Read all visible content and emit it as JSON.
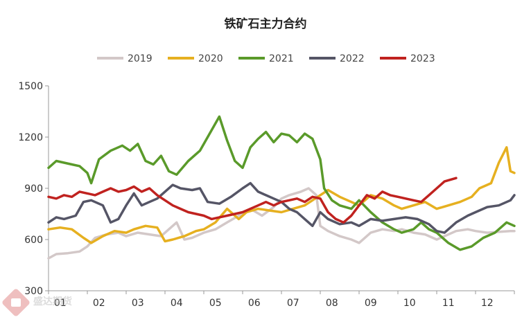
{
  "chart_data": {
    "type": "line",
    "title": "铁矿石主力合约",
    "xlabel": "",
    "ylabel": "",
    "ylim": [
      300,
      1500
    ],
    "yticks": [
      "1500",
      "1200",
      "900",
      "600",
      "300"
    ],
    "xticks": [
      "01",
      "02",
      "03",
      "04",
      "05",
      "06",
      "07",
      "08",
      "09",
      "10",
      "11",
      "12"
    ],
    "xlim": [
      1,
      13
    ],
    "grid": false,
    "legend_position": "top",
    "series": [
      {
        "name": "2019",
        "color": "#d3c8c8",
        "x": [
          1.0,
          1.2,
          1.5,
          1.8,
          2.0,
          2.2,
          2.5,
          2.8,
          3.0,
          3.3,
          3.6,
          3.9,
          4.1,
          4.3,
          4.5,
          4.7,
          5.0,
          5.3,
          5.6,
          5.9,
          6.2,
          6.5,
          6.8,
          7.0,
          7.2,
          7.5,
          7.7,
          7.9,
          8.0,
          8.2,
          8.5,
          8.8,
          9.0,
          9.3,
          9.6,
          9.9,
          10.1,
          10.4,
          10.7,
          11.0,
          11.2,
          11.5,
          11.8,
          12.0,
          12.3,
          12.6,
          12.9,
          13.0
        ],
        "values": [
          490,
          515,
          520,
          530,
          560,
          610,
          630,
          640,
          620,
          640,
          630,
          620,
          660,
          700,
          600,
          610,
          640,
          660,
          700,
          740,
          780,
          740,
          790,
          840,
          860,
          880,
          900,
          860,
          680,
          650,
          620,
          600,
          580,
          640,
          660,
          650,
          660,
          640,
          630,
          600,
          620,
          650,
          660,
          650,
          640,
          645,
          650,
          650
        ]
      },
      {
        "name": "2020",
        "color": "#e6b020",
        "x": [
          1.0,
          1.3,
          1.6,
          1.9,
          2.1,
          2.4,
          2.7,
          3.0,
          3.2,
          3.5,
          3.8,
          4.0,
          4.2,
          4.5,
          4.8,
          5.0,
          5.3,
          5.6,
          5.9,
          6.1,
          6.4,
          6.7,
          7.0,
          7.3,
          7.6,
          7.8,
          8.0,
          8.2,
          8.5,
          8.8,
          9.0,
          9.3,
          9.6,
          9.9,
          10.1,
          10.4,
          10.7,
          11.0,
          11.3,
          11.6,
          11.9,
          12.1,
          12.4,
          12.6,
          12.8,
          12.9,
          13.0
        ],
        "values": [
          660,
          670,
          660,
          610,
          580,
          620,
          650,
          640,
          660,
          680,
          670,
          590,
          600,
          620,
          650,
          660,
          700,
          780,
          720,
          760,
          780,
          770,
          760,
          780,
          800,
          830,
          860,
          890,
          850,
          820,
          800,
          860,
          840,
          800,
          780,
          800,
          820,
          780,
          800,
          820,
          850,
          900,
          930,
          1050,
          1140,
          1000,
          990
        ]
      },
      {
        "name": "2021",
        "color": "#5a9a2a",
        "x": [
          1.0,
          1.2,
          1.4,
          1.6,
          1.8,
          2.0,
          2.1,
          2.3,
          2.6,
          2.9,
          3.1,
          3.3,
          3.5,
          3.7,
          3.9,
          4.1,
          4.3,
          4.6,
          4.9,
          5.1,
          5.3,
          5.4,
          5.6,
          5.8,
          6.0,
          6.2,
          6.4,
          6.6,
          6.8,
          7.0,
          7.2,
          7.4,
          7.6,
          7.8,
          8.0,
          8.1,
          8.3,
          8.5,
          8.8,
          9.0,
          9.3,
          9.6,
          9.9,
          10.1,
          10.4,
          10.6,
          10.8,
          11.0,
          11.3,
          11.6,
          11.9,
          12.2,
          12.5,
          12.8,
          13.0
        ],
        "values": [
          1020,
          1060,
          1050,
          1040,
          1030,
          990,
          930,
          1070,
          1120,
          1150,
          1120,
          1160,
          1060,
          1040,
          1090,
          1000,
          980,
          1060,
          1120,
          1200,
          1280,
          1320,
          1180,
          1060,
          1020,
          1140,
          1190,
          1230,
          1170,
          1220,
          1210,
          1170,
          1220,
          1190,
          1070,
          900,
          830,
          800,
          780,
          830,
          760,
          700,
          660,
          640,
          660,
          700,
          660,
          640,
          580,
          540,
          560,
          610,
          640,
          700,
          680
        ]
      },
      {
        "name": "2022",
        "color": "#555566",
        "x": [
          1.0,
          1.2,
          1.4,
          1.7,
          1.9,
          2.1,
          2.4,
          2.6,
          2.8,
          3.0,
          3.2,
          3.4,
          3.6,
          3.8,
          4.0,
          4.2,
          4.4,
          4.7,
          4.9,
          5.1,
          5.4,
          5.7,
          6.0,
          6.2,
          6.4,
          6.6,
          6.8,
          7.0,
          7.2,
          7.4,
          7.6,
          7.8,
          8.0,
          8.2,
          8.5,
          8.8,
          9.0,
          9.3,
          9.6,
          9.9,
          10.2,
          10.5,
          10.8,
          11.0,
          11.2,
          11.5,
          11.8,
          12.0,
          12.3,
          12.6,
          12.9,
          13.0
        ],
        "values": [
          700,
          730,
          720,
          740,
          820,
          830,
          800,
          700,
          720,
          800,
          870,
          800,
          820,
          840,
          880,
          920,
          900,
          890,
          900,
          820,
          810,
          850,
          900,
          930,
          880,
          860,
          840,
          820,
          780,
          760,
          720,
          680,
          760,
          720,
          690,
          700,
          680,
          720,
          710,
          720,
          730,
          720,
          690,
          650,
          640,
          700,
          740,
          760,
          790,
          800,
          830,
          860
        ]
      },
      {
        "name": "2023",
        "color": "#c0221f",
        "x": [
          1.0,
          1.2,
          1.4,
          1.6,
          1.8,
          2.0,
          2.2,
          2.4,
          2.6,
          2.8,
          3.0,
          3.2,
          3.4,
          3.6,
          3.8,
          4.0,
          4.2,
          4.4,
          4.6,
          4.8,
          5.0,
          5.2,
          5.4,
          5.6,
          5.8,
          6.0,
          6.2,
          6.4,
          6.6,
          6.8,
          7.0,
          7.2,
          7.4,
          7.6,
          7.8,
          8.0,
          8.2,
          8.4,
          8.6,
          8.8,
          9.0,
          9.2,
          9.4,
          9.6,
          9.8,
          10.0,
          10.2,
          10.4,
          10.6,
          10.8,
          11.0,
          11.2,
          11.5
        ],
        "values": [
          850,
          840,
          860,
          850,
          880,
          870,
          860,
          880,
          900,
          880,
          890,
          910,
          880,
          900,
          860,
          830,
          800,
          780,
          760,
          750,
          740,
          720,
          730,
          740,
          750,
          760,
          780,
          800,
          820,
          800,
          820,
          830,
          840,
          820,
          850,
          840,
          760,
          720,
          700,
          740,
          800,
          860,
          840,
          880,
          860,
          850,
          840,
          830,
          820,
          860,
          900,
          940,
          960
        ]
      }
    ]
  }
}
